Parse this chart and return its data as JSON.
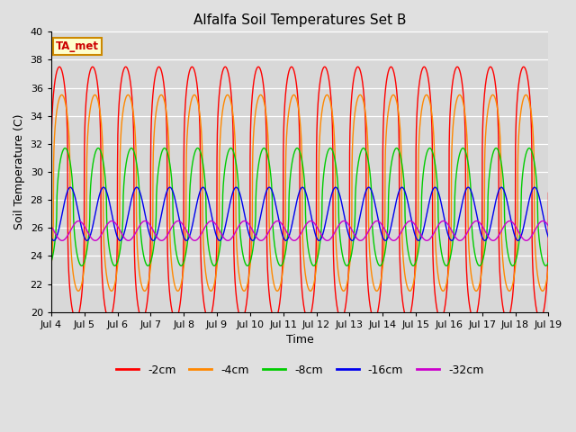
{
  "title": "Alfalfa Soil Temperatures Set B",
  "xlabel": "Time",
  "ylabel": "Soil Temperature (C)",
  "ylim": [
    20,
    40
  ],
  "bg_color": "#e0e0e0",
  "plot_bg_color": "#d8d8d8",
  "legend_label": "TA_met",
  "legend_bg": "#ffffcc",
  "legend_border": "#cc8800",
  "x_tick_labels": [
    "Jul 4",
    "Jul 5",
    "Jul 6",
    "Jul 7",
    "Jul 8",
    "Jul 9",
    "Jul 10",
    "Jul 11",
    "Jul 12",
    "Jul 13",
    "Jul 14",
    "Jul 15",
    "Jul 16",
    "Jul 17",
    "Jul 18",
    "Jul 19"
  ],
  "series": [
    {
      "label": "-2cm",
      "color": "#ff0000",
      "amp": 9.0,
      "mean": 28.5,
      "phase": 0.0,
      "sharpness": 3.5
    },
    {
      "label": "-4cm",
      "color": "#ff8800",
      "amp": 7.0,
      "mean": 28.5,
      "phase": 0.07,
      "sharpness": 3.0
    },
    {
      "label": "-8cm",
      "color": "#00cc00",
      "amp": 4.2,
      "mean": 27.5,
      "phase": 0.17,
      "sharpness": 2.0
    },
    {
      "label": "-16cm",
      "color": "#0000ee",
      "amp": 1.9,
      "mean": 27.0,
      "phase": 0.33,
      "sharpness": 1.0
    },
    {
      "label": "-32cm",
      "color": "#cc00cc",
      "amp": 0.7,
      "mean": 25.8,
      "phase": 0.58,
      "sharpness": 1.0
    }
  ]
}
